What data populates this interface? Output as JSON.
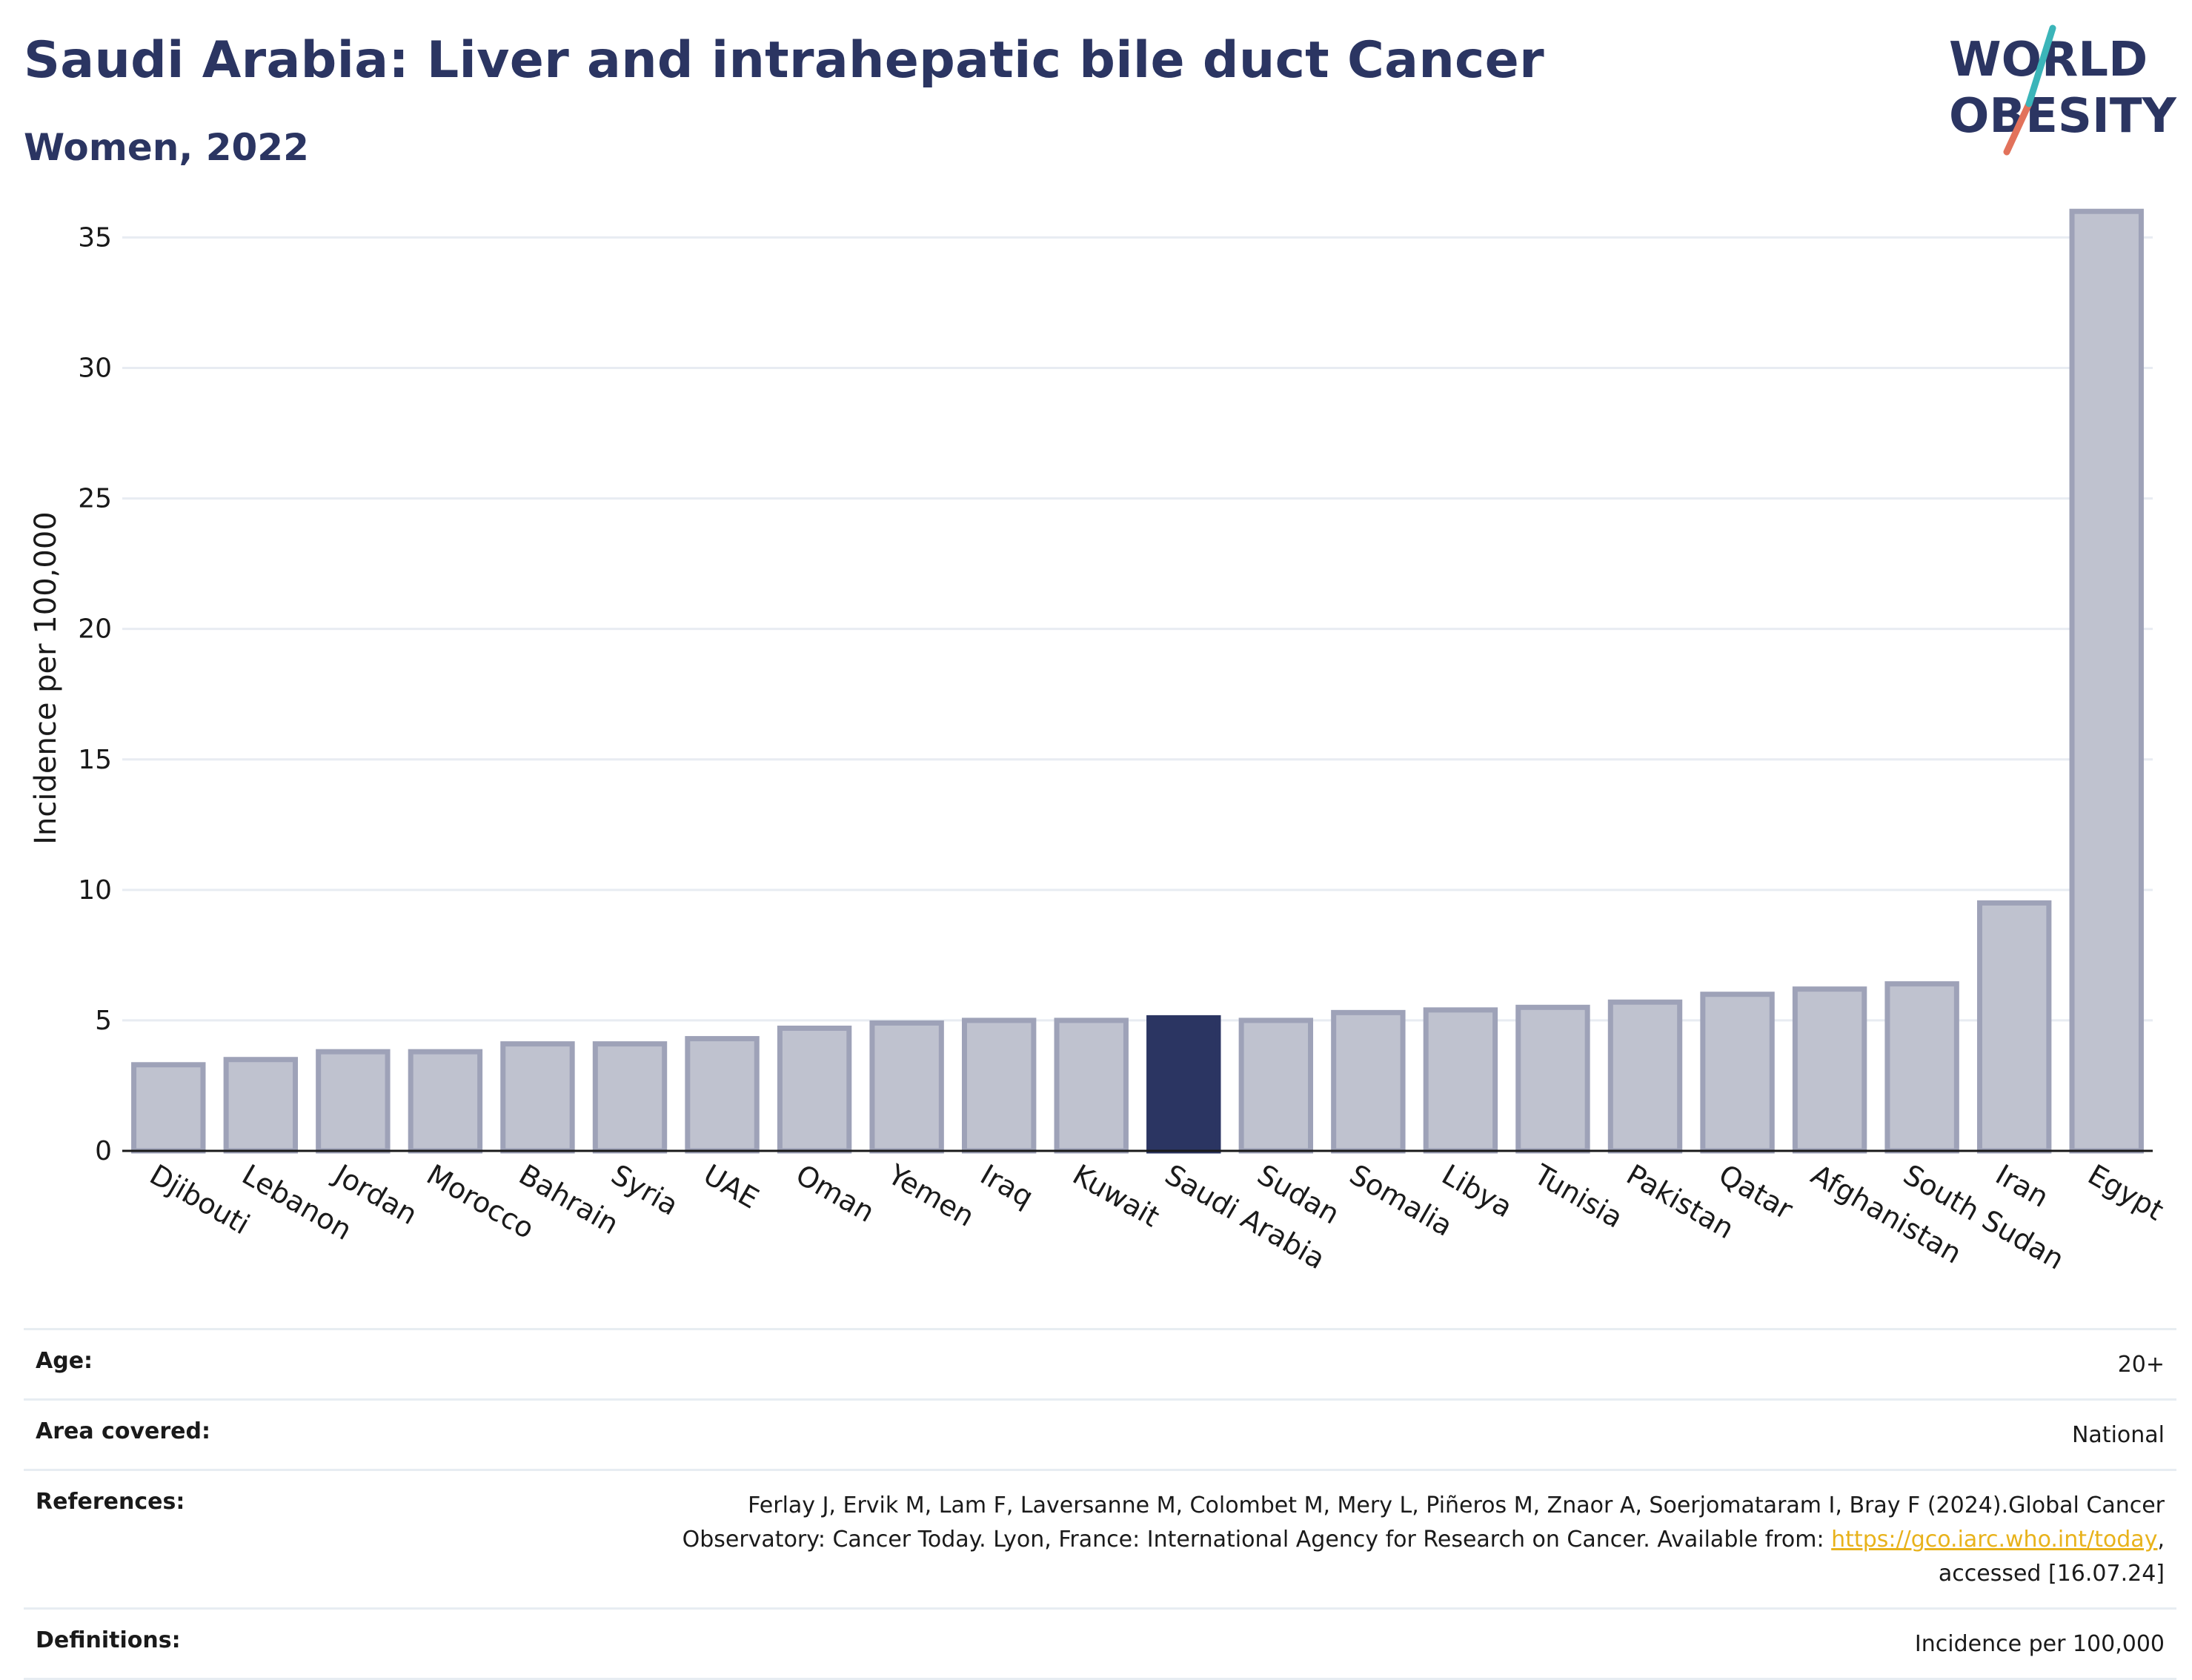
{
  "header": {
    "title": "Saudi Arabia: Liver and intrahepatic bile duct Cancer",
    "subtitle": "Women, 2022"
  },
  "logo": {
    "line1": "WORLD",
    "line2": "OBESITY"
  },
  "colors": {
    "highlight": "#2b3562",
    "bar_fill": "#bfc2cf",
    "bar_stroke": "#9ea2b8",
    "grid": "#e8ecf2",
    "link": "#e8b21b"
  },
  "chart_data": {
    "type": "bar",
    "categories": [
      "Djibouti",
      "Lebanon",
      "Jordan",
      "Morocco",
      "Bahrain",
      "Syria",
      "UAE",
      "Oman",
      "Yemen",
      "Iraq",
      "Kuwait",
      "Saudi Arabia",
      "Sudan",
      "Somalia",
      "Libya",
      "Tunisia",
      "Pakistan",
      "Qatar",
      "Afghanistan",
      "South Sudan",
      "Iran",
      "Egypt"
    ],
    "values": [
      3.3,
      3.5,
      3.8,
      3.8,
      4.1,
      4.1,
      4.3,
      4.7,
      4.9,
      5.0,
      5.0,
      5.1,
      5.0,
      5.3,
      5.4,
      5.5,
      5.7,
      6.0,
      6.2,
      6.4,
      9.5,
      36.0
    ],
    "highlight": "Saudi Arabia",
    "ylabel": "Incidence per 100,000",
    "ylim": [
      0,
      37
    ],
    "yticks": [
      0,
      5,
      10,
      15,
      20,
      25,
      30,
      35
    ],
    "grid": true
  },
  "meta": [
    {
      "label": "Age:",
      "value": "20+"
    },
    {
      "label": "Area covered:",
      "value": "National"
    },
    {
      "label": "References:",
      "value_line1": "Ferlay J, Ervik M, Lam F, Laversanne M, Colombet M, Mery L, Piñeros M, Znaor A, Soerjomataram I, Bray F (2024).Global Cancer",
      "value_line2_prefix": "Observatory: Cancer Today. Lyon, France: International Agency for Research on Cancer. Available from: ",
      "value_link": "https://gco.iarc.who.int/today",
      "value_line2_suffix": ",",
      "value_line3": "accessed [16.07.24]"
    },
    {
      "label": "Definitions:",
      "value": "Incidence per 100,000"
    }
  ]
}
